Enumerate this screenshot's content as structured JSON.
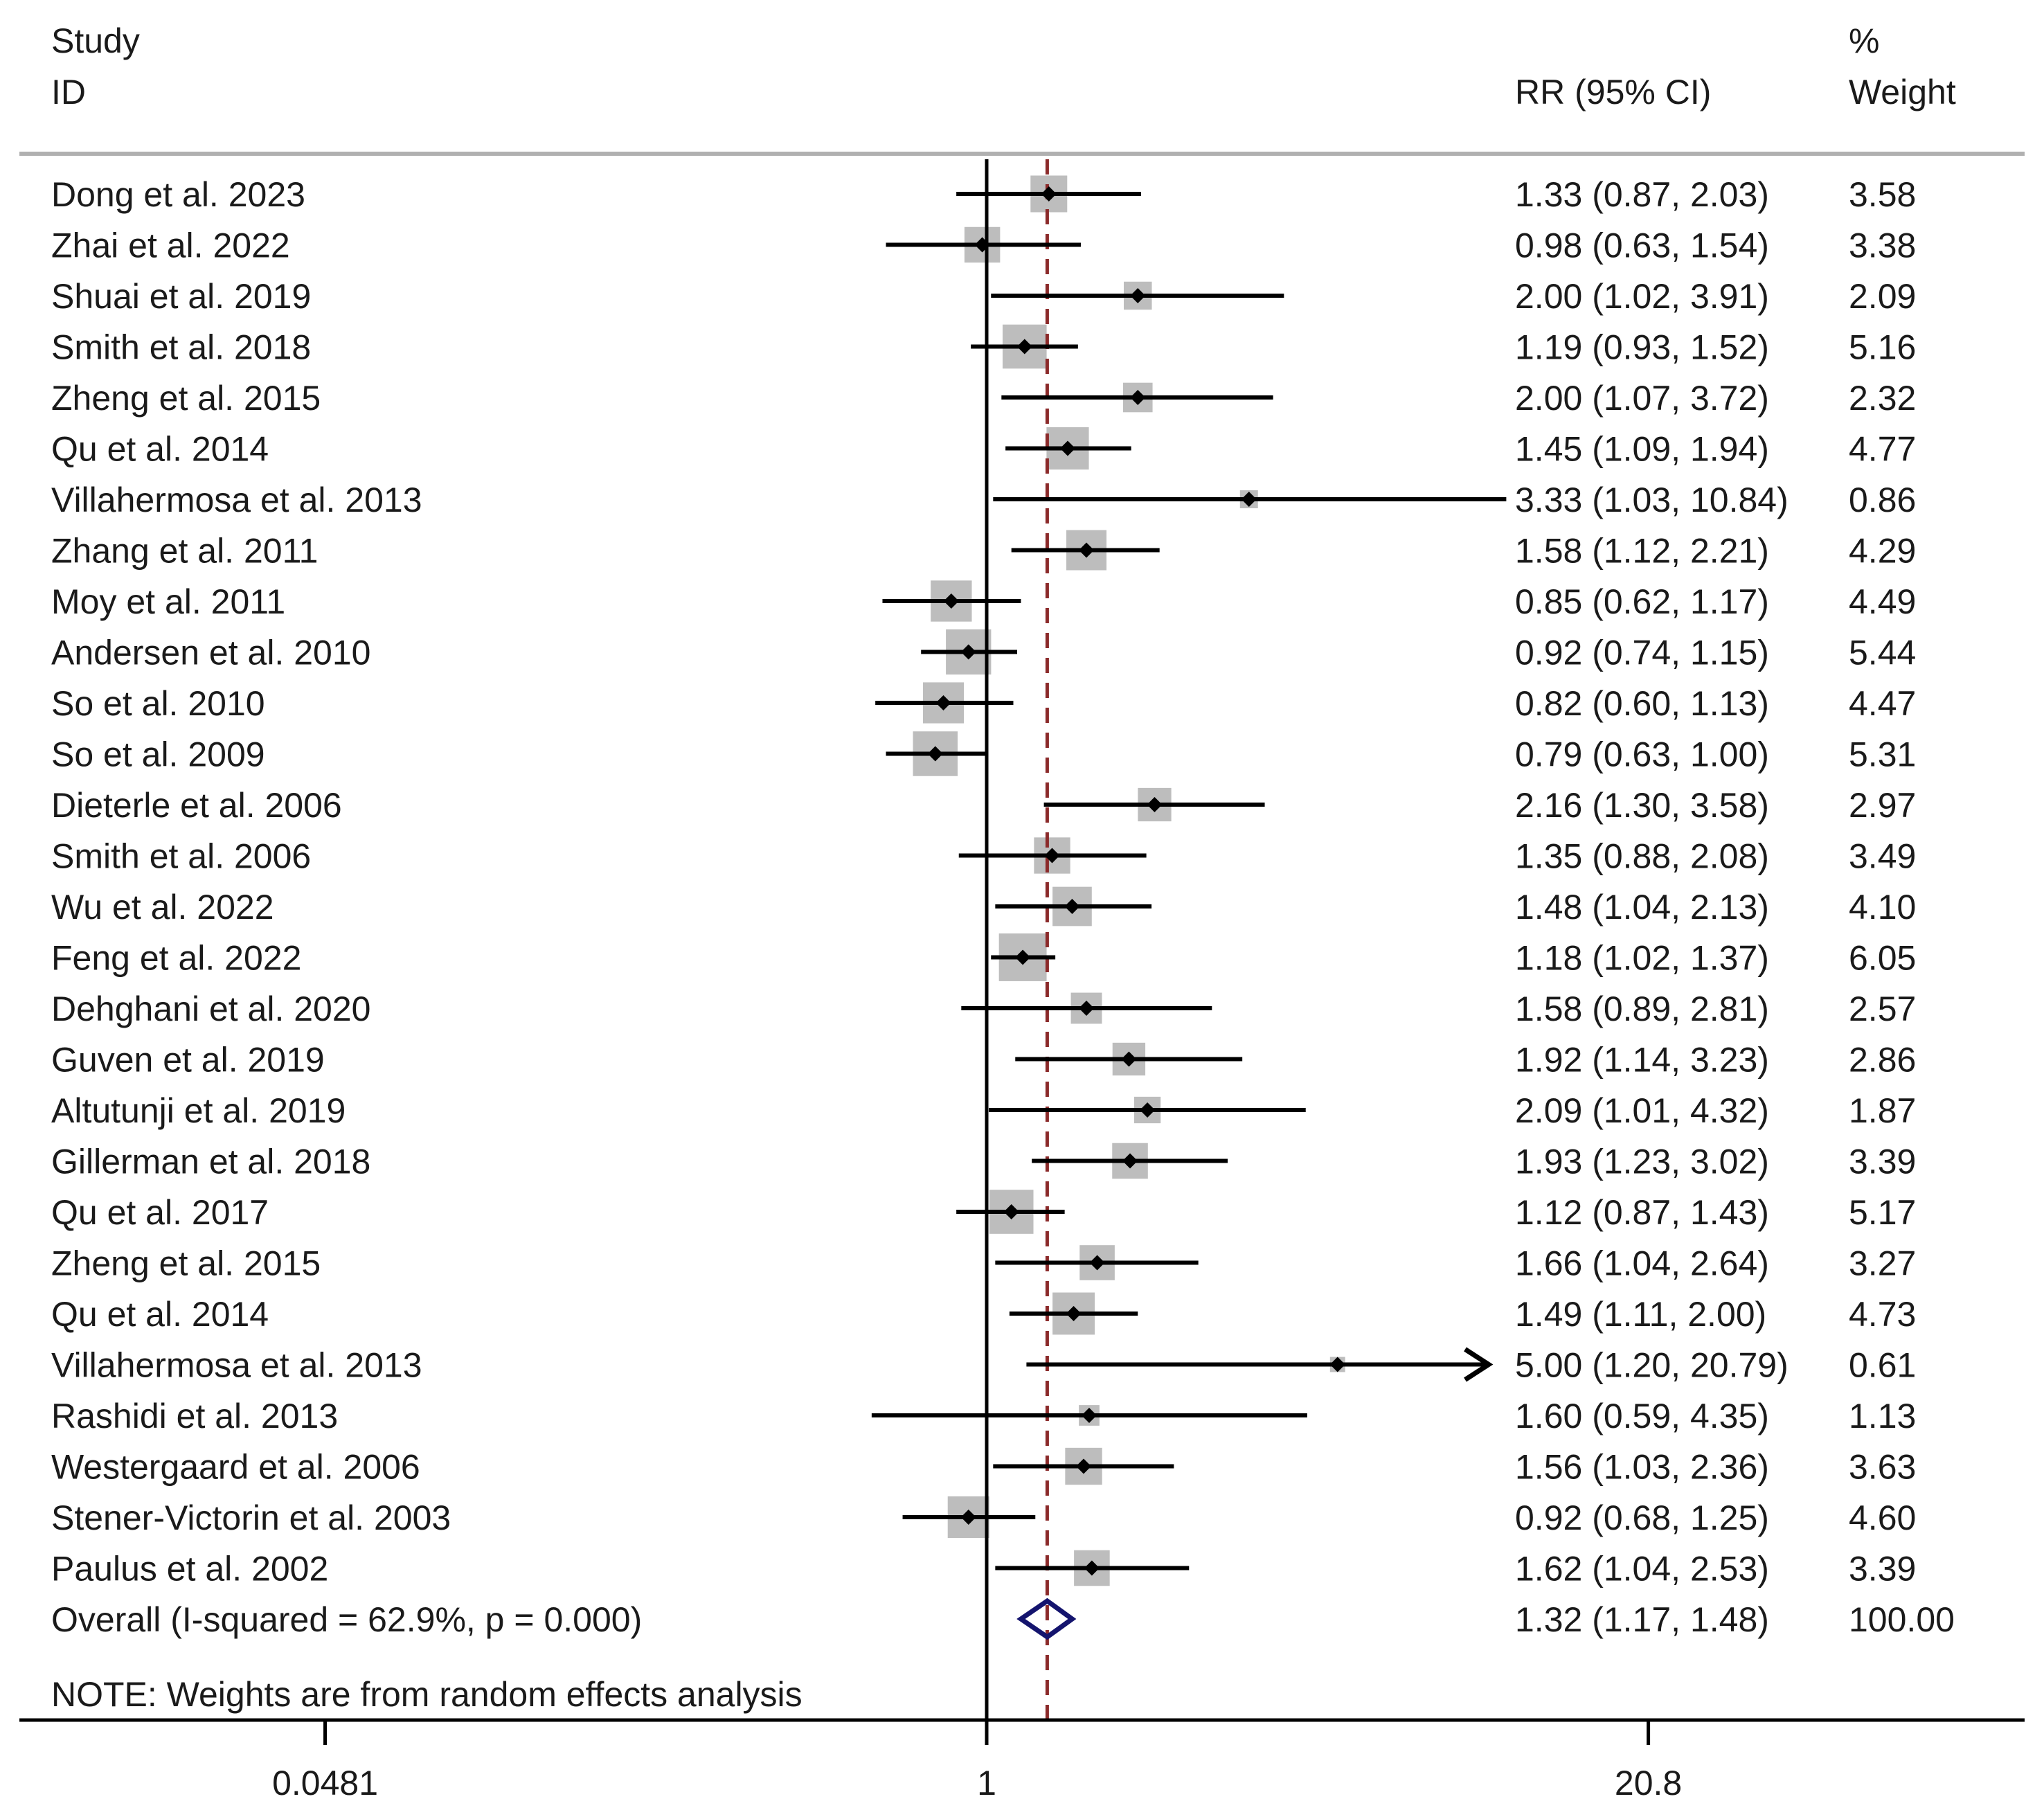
{
  "chart_data": {
    "type": "forest",
    "measure": "RR",
    "header": {
      "study_line1": "Study",
      "study_line2": "ID",
      "effect_label": "RR (95% CI)",
      "weight_line1": "%",
      "weight_line2": "Weight"
    },
    "studies": [
      {
        "id": "Dong et al. 2023",
        "rr": 1.33,
        "lower": 0.87,
        "upper": 2.03,
        "ci_text": "1.33 (0.87, 2.03)",
        "weight": 3.58,
        "weight_text": "3.58"
      },
      {
        "id": "Zhai et al. 2022",
        "rr": 0.98,
        "lower": 0.63,
        "upper": 1.54,
        "ci_text": "0.98 (0.63, 1.54)",
        "weight": 3.38,
        "weight_text": "3.38"
      },
      {
        "id": "Shuai et al. 2019",
        "rr": 2.0,
        "lower": 1.02,
        "upper": 3.91,
        "ci_text": "2.00 (1.02, 3.91)",
        "weight": 2.09,
        "weight_text": "2.09"
      },
      {
        "id": "Smith et al. 2018",
        "rr": 1.19,
        "lower": 0.93,
        "upper": 1.52,
        "ci_text": "1.19 (0.93, 1.52)",
        "weight": 5.16,
        "weight_text": "5.16"
      },
      {
        "id": "Zheng et al. 2015",
        "rr": 2.0,
        "lower": 1.07,
        "upper": 3.72,
        "ci_text": "2.00 (1.07, 3.72)",
        "weight": 2.32,
        "weight_text": "2.32"
      },
      {
        "id": "Qu et al. 2014",
        "rr": 1.45,
        "lower": 1.09,
        "upper": 1.94,
        "ci_text": "1.45 (1.09, 1.94)",
        "weight": 4.77,
        "weight_text": "4.77"
      },
      {
        "id": "Villahermosa et al. 2013",
        "rr": 3.33,
        "lower": 1.03,
        "upper": 10.84,
        "ci_text": "3.33 (1.03, 10.84)",
        "weight": 0.86,
        "weight_text": "0.86"
      },
      {
        "id": "Zhang et al. 2011",
        "rr": 1.58,
        "lower": 1.12,
        "upper": 2.21,
        "ci_text": "1.58 (1.12, 2.21)",
        "weight": 4.29,
        "weight_text": "4.29"
      },
      {
        "id": "Moy et al. 2011",
        "rr": 0.85,
        "lower": 0.62,
        "upper": 1.17,
        "ci_text": "0.85 (0.62, 1.17)",
        "weight": 4.49,
        "weight_text": "4.49"
      },
      {
        "id": "Andersen et al. 2010",
        "rr": 0.92,
        "lower": 0.74,
        "upper": 1.15,
        "ci_text": "0.92 (0.74, 1.15)",
        "weight": 5.44,
        "weight_text": "5.44"
      },
      {
        "id": "So et al. 2010",
        "rr": 0.82,
        "lower": 0.6,
        "upper": 1.13,
        "ci_text": "0.82 (0.60, 1.13)",
        "weight": 4.47,
        "weight_text": "4.47"
      },
      {
        "id": "So et al. 2009",
        "rr": 0.79,
        "lower": 0.63,
        "upper": 1.0,
        "ci_text": "0.79 (0.63, 1.00)",
        "weight": 5.31,
        "weight_text": "5.31"
      },
      {
        "id": "Dieterle et al. 2006",
        "rr": 2.16,
        "lower": 1.3,
        "upper": 3.58,
        "ci_text": "2.16 (1.30, 3.58)",
        "weight": 2.97,
        "weight_text": "2.97"
      },
      {
        "id": "Smith et al. 2006",
        "rr": 1.35,
        "lower": 0.88,
        "upper": 2.08,
        "ci_text": "1.35 (0.88, 2.08)",
        "weight": 3.49,
        "weight_text": "3.49"
      },
      {
        "id": "Wu et al. 2022",
        "rr": 1.48,
        "lower": 1.04,
        "upper": 2.13,
        "ci_text": "1.48 (1.04, 2.13)",
        "weight": 4.1,
        "weight_text": "4.10"
      },
      {
        "id": "Feng et al. 2022",
        "rr": 1.18,
        "lower": 1.02,
        "upper": 1.37,
        "ci_text": "1.18 (1.02, 1.37)",
        "weight": 6.05,
        "weight_text": "6.05"
      },
      {
        "id": "Dehghani et al. 2020",
        "rr": 1.58,
        "lower": 0.89,
        "upper": 2.81,
        "ci_text": "1.58 (0.89, 2.81)",
        "weight": 2.57,
        "weight_text": "2.57"
      },
      {
        "id": "Guven et al. 2019",
        "rr": 1.92,
        "lower": 1.14,
        "upper": 3.23,
        "ci_text": "1.92 (1.14, 3.23)",
        "weight": 2.86,
        "weight_text": "2.86"
      },
      {
        "id": "Altutunji et al. 2019",
        "rr": 2.09,
        "lower": 1.01,
        "upper": 4.32,
        "ci_text": "2.09 (1.01, 4.32)",
        "weight": 1.87,
        "weight_text": "1.87"
      },
      {
        "id": "Gillerman et al. 2018",
        "rr": 1.93,
        "lower": 1.23,
        "upper": 3.02,
        "ci_text": "1.93 (1.23, 3.02)",
        "weight": 3.39,
        "weight_text": "3.39"
      },
      {
        "id": "Qu et al. 2017",
        "rr": 1.12,
        "lower": 0.87,
        "upper": 1.43,
        "ci_text": "1.12 (0.87, 1.43)",
        "weight": 5.17,
        "weight_text": "5.17"
      },
      {
        "id": "Zheng et al. 2015",
        "rr": 1.66,
        "lower": 1.04,
        "upper": 2.64,
        "ci_text": "1.66 (1.04, 2.64)",
        "weight": 3.27,
        "weight_text": "3.27"
      },
      {
        "id": "Qu et al. 2014",
        "rr": 1.49,
        "lower": 1.11,
        "upper": 2.0,
        "ci_text": "1.49 (1.11, 2.00)",
        "weight": 4.73,
        "weight_text": "4.73"
      },
      {
        "id": "Villahermosa et al. 2013",
        "rr": 5.0,
        "lower": 1.2,
        "upper": 20.79,
        "ci_text": "5.00 (1.20, 20.79)",
        "weight": 0.61,
        "weight_text": "0.61",
        "arrow_right": true
      },
      {
        "id": "Rashidi et al. 2013",
        "rr": 1.6,
        "lower": 0.59,
        "upper": 4.35,
        "ci_text": "1.60 (0.59, 4.35)",
        "weight": 1.13,
        "weight_text": "1.13"
      },
      {
        "id": "Westergaard et al. 2006",
        "rr": 1.56,
        "lower": 1.03,
        "upper": 2.36,
        "ci_text": "1.56 (1.03, 2.36)",
        "weight": 3.63,
        "weight_text": "3.63"
      },
      {
        "id": "Stener-Victorin et al. 2003",
        "rr": 0.92,
        "lower": 0.68,
        "upper": 1.25,
        "ci_text": "0.92 (0.68, 1.25)",
        "weight": 4.6,
        "weight_text": "4.60"
      },
      {
        "id": "Paulus et al. 2002",
        "rr": 1.62,
        "lower": 1.04,
        "upper": 2.53,
        "ci_text": "1.62 (1.04, 2.53)",
        "weight": 3.39,
        "weight_text": "3.39"
      }
    ],
    "overall": {
      "label": "Overall  (I-squared = 62.9%, p = 0.000)",
      "rr": 1.32,
      "lower": 1.17,
      "upper": 1.48,
      "ci_text": "1.32 (1.17, 1.48)",
      "weight_text": "100.00"
    },
    "note": "NOTE: Weights are from random effects analysis",
    "x_axis": {
      "scale": "log",
      "range": [
        0.0481,
        20.8
      ],
      "null_value": 1,
      "ticks": [
        {
          "value": 0.0481,
          "label": "0.0481"
        },
        {
          "value": 1,
          "label": "1"
        },
        {
          "value": 20.8,
          "label": "20.8"
        }
      ]
    },
    "colors": {
      "text": "#1a1a1a",
      "box": "#bdbdbd",
      "line": "#000000",
      "reference_line": "#8b2a2a",
      "diamond": "#14146e",
      "rule": "#b0b0b0"
    }
  }
}
